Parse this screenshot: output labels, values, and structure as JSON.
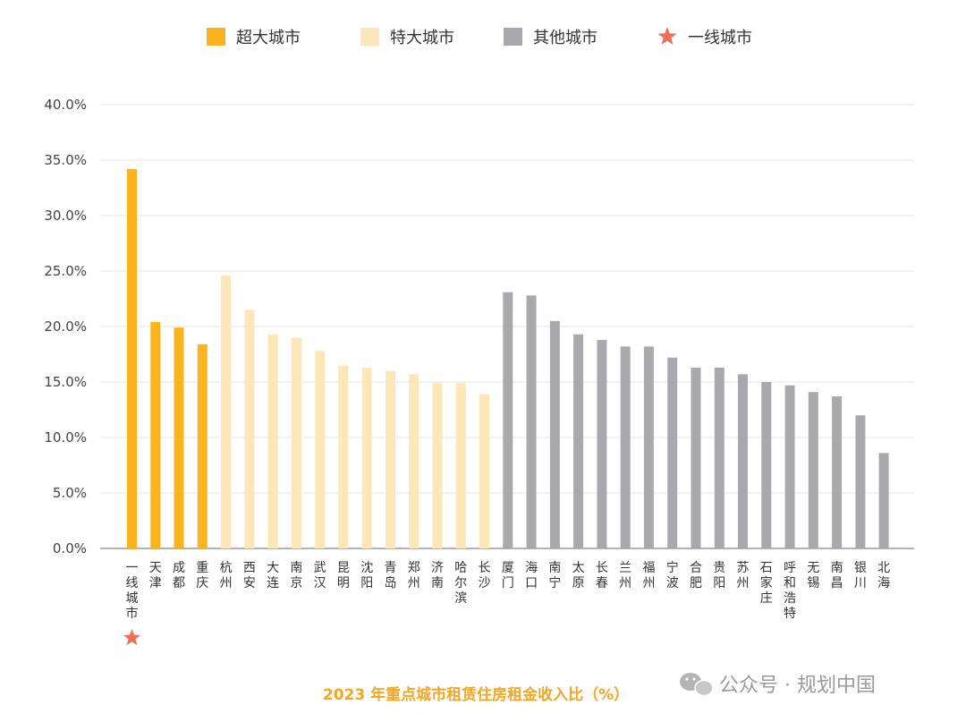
{
  "chart_data": {
    "type": "bar",
    "title": "2023 年重点城市租赁住房租金收入比（%）",
    "ylim": [
      0,
      40
    ],
    "yticks": [
      "0.0%",
      "5.0%",
      "10.0%",
      "15.0%",
      "20.0%",
      "25.0%",
      "30.0%",
      "35.0%",
      "40.0%"
    ],
    "legend": [
      {
        "key": "super",
        "label": "超大城市",
        "color": "#fbb320"
      },
      {
        "key": "large",
        "label": "特大城市",
        "color": "#fde7b8"
      },
      {
        "key": "other",
        "label": "其他城市",
        "color": "#a9a9ad"
      },
      {
        "key": "tier1",
        "label": "一线城市",
        "color": "#ef6f52",
        "marker": "star"
      }
    ],
    "categories": [
      "一线城市",
      "天津",
      "成都",
      "重庆",
      "杭州",
      "西安",
      "大连",
      "南京",
      "武汉",
      "昆明",
      "沈阳",
      "青岛",
      "郑州",
      "济南",
      "哈尔滨",
      "长沙",
      "厦门",
      "海口",
      "南宁",
      "太原",
      "长春",
      "兰州",
      "福州",
      "宁波",
      "合肥",
      "贵阳",
      "苏州",
      "石家庄",
      "呼和浩特",
      "无锡",
      "南昌",
      "银川",
      "北海"
    ],
    "values": [
      34.2,
      20.4,
      19.9,
      18.4,
      24.6,
      21.5,
      19.3,
      19.0,
      17.8,
      16.5,
      16.3,
      16.0,
      15.7,
      14.9,
      14.9,
      13.9,
      23.1,
      22.8,
      20.5,
      19.3,
      18.8,
      18.2,
      18.2,
      17.2,
      16.3,
      16.3,
      15.7,
      15.0,
      14.7,
      14.1,
      13.7,
      12.0,
      8.6
    ],
    "groups": [
      "super",
      "super",
      "super",
      "super",
      "large",
      "large",
      "large",
      "large",
      "large",
      "large",
      "large",
      "large",
      "large",
      "large",
      "large",
      "large",
      "other",
      "other",
      "other",
      "other",
      "other",
      "other",
      "other",
      "other",
      "other",
      "other",
      "other",
      "other",
      "other",
      "other",
      "other",
      "other",
      "other"
    ],
    "tier1_marked": [
      "一线城市"
    ]
  },
  "watermark": "公众号 · 规划中国",
  "colors": {
    "grid": "#e6e6e6",
    "axis": "#999999",
    "star": "#ef6f52"
  }
}
